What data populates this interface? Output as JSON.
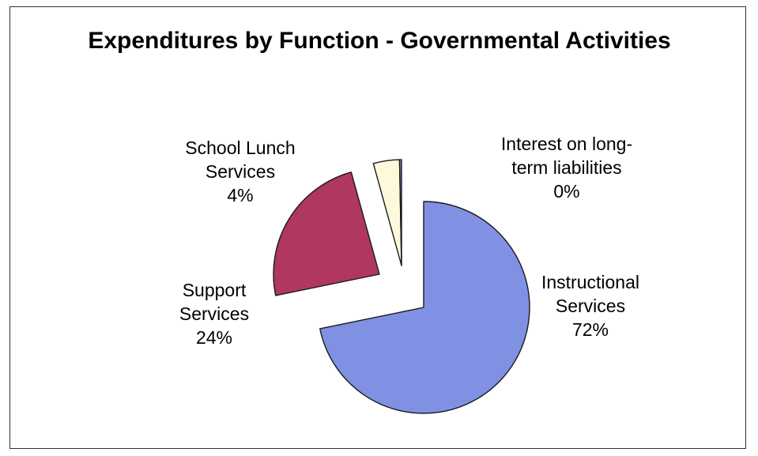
{
  "chart_data": {
    "type": "pie",
    "title": "Expenditures by Function - Governmental Activities",
    "slices": [
      {
        "label_lines": [
          "Instructional",
          "Services"
        ],
        "label": "Instructional Services",
        "value": 72,
        "display": "72%",
        "color": "#8091e3"
      },
      {
        "label_lines": [
          "Support",
          "Services"
        ],
        "label": "Support Services",
        "value": 24,
        "display": "24%",
        "color": "#b0375e"
      },
      {
        "label_lines": [
          "School Lunch",
          "Services"
        ],
        "label": "School Lunch Services",
        "value": 4,
        "display": "4%",
        "color": "#fdfadb"
      },
      {
        "label_lines": [
          "Interest on long-",
          "term liabilities"
        ],
        "label": "Interest on long-term liabilities",
        "value": 0.3,
        "display": "0%",
        "color": "#8091e3"
      }
    ]
  }
}
